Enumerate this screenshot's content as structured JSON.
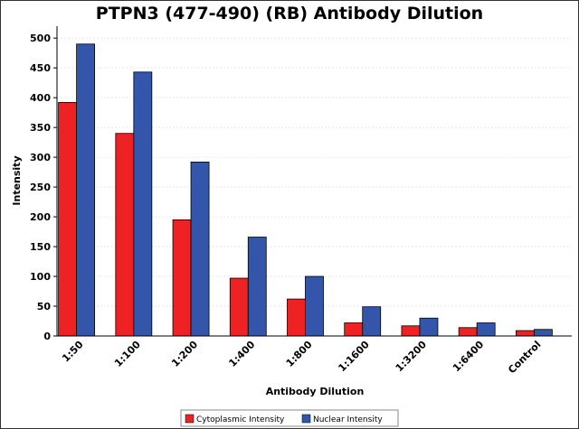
{
  "chart_data": {
    "type": "bar",
    "title": "PTPN3 (477-490) (RB) Antibody Dilution",
    "xlabel": "Antibody Dilution",
    "ylabel": "Intensity",
    "ylim": [
      0,
      520
    ],
    "yticks": [
      0,
      50,
      100,
      150,
      200,
      250,
      300,
      350,
      400,
      450,
      500
    ],
    "grid": true,
    "legend_position": "bottom",
    "categories": [
      "1:50",
      "1:100",
      "1:200",
      "1:400",
      "1:800",
      "1:1600",
      "1:3200",
      "1:6400",
      "Control"
    ],
    "series": [
      {
        "name": "Cytoplasmic Intensity",
        "color": "#ee2222",
        "values": [
          392,
          340,
          195,
          97,
          62,
          22,
          17,
          14,
          9
        ]
      },
      {
        "name": "Nuclear Intensity",
        "color": "#3355aa",
        "values": [
          490,
          443,
          292,
          166,
          100,
          49,
          30,
          22,
          11
        ]
      }
    ]
  }
}
